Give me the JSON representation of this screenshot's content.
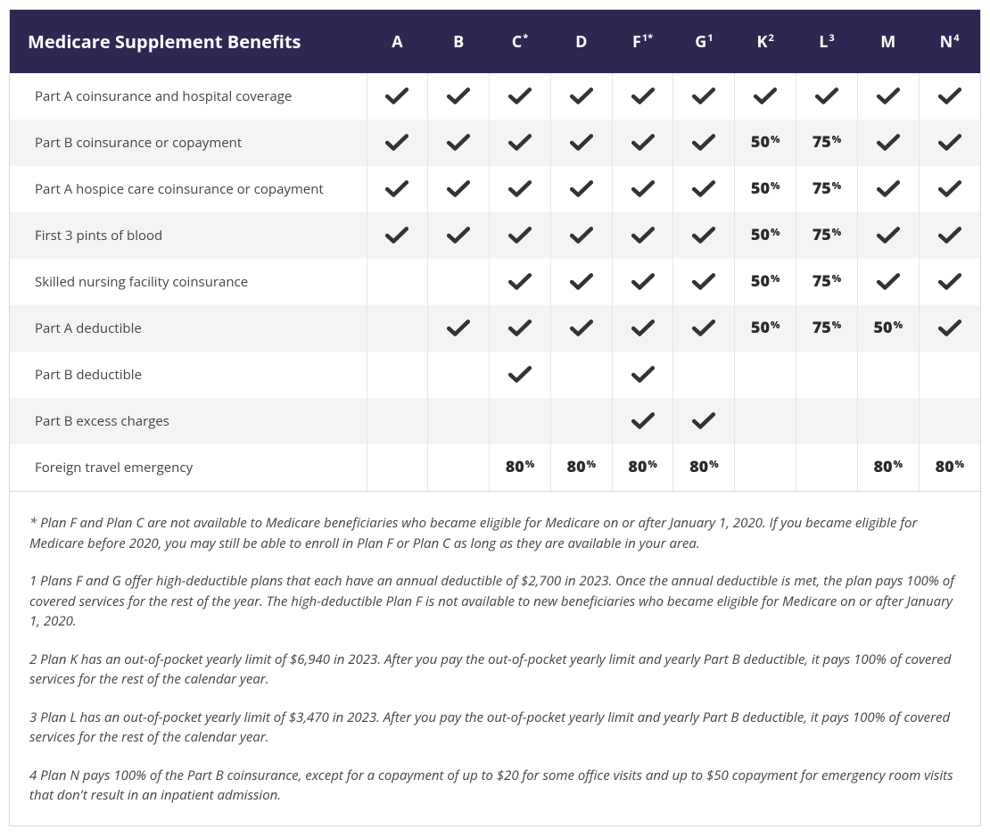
{
  "colors": {
    "header_bg": "#2f2752",
    "header_text": "#ffffff",
    "row_even_bg": "#f4f4f4",
    "row_odd_bg": "#ffffff",
    "border": "#e6e6e6",
    "outer_border": "#d8d8d8",
    "check_color": "#333333",
    "text": "#333333",
    "footnote_text": "#444444"
  },
  "table": {
    "title": "Medicare Supplement Benefits",
    "columns": [
      {
        "label": "A",
        "sup": ""
      },
      {
        "label": "B",
        "sup": ""
      },
      {
        "label": "C",
        "sup": "*"
      },
      {
        "label": "D",
        "sup": ""
      },
      {
        "label": "F",
        "sup": "1*"
      },
      {
        "label": "G",
        "sup": "1"
      },
      {
        "label": "K",
        "sup": "2"
      },
      {
        "label": "L",
        "sup": "3"
      },
      {
        "label": "M",
        "sup": ""
      },
      {
        "label": "N",
        "sup": "4"
      }
    ],
    "rows": [
      {
        "label": "Part A coinsurance and hospital coverage",
        "cells": [
          "check",
          "check",
          "check",
          "check",
          "check",
          "check",
          "check",
          "check",
          "check",
          "check"
        ]
      },
      {
        "label": "Part B coinsurance or copayment",
        "cells": [
          "check",
          "check",
          "check",
          "check",
          "check",
          "check",
          "50",
          "75",
          "check",
          "check"
        ]
      },
      {
        "label": "Part A hospice care coinsurance or copayment",
        "cells": [
          "check",
          "check",
          "check",
          "check",
          "check",
          "check",
          "50",
          "75",
          "check",
          "check"
        ]
      },
      {
        "label": "First 3 pints of blood",
        "cells": [
          "check",
          "check",
          "check",
          "check",
          "check",
          "check",
          "50",
          "75",
          "check",
          "check"
        ]
      },
      {
        "label": "Skilled nursing facility coinsurance",
        "cells": [
          "",
          "",
          "check",
          "check",
          "check",
          "check",
          "50",
          "75",
          "check",
          "check"
        ]
      },
      {
        "label": "Part A deductible",
        "cells": [
          "",
          "check",
          "check",
          "check",
          "check",
          "check",
          "50",
          "75",
          "50",
          "check"
        ]
      },
      {
        "label": "Part B deductible",
        "cells": [
          "",
          "",
          "check",
          "",
          "check",
          "",
          "",
          "",
          "",
          ""
        ]
      },
      {
        "label": "Part B excess charges",
        "cells": [
          "",
          "",
          "",
          "",
          "check",
          "check",
          "",
          "",
          "",
          ""
        ]
      },
      {
        "label": "Foreign travel emergency",
        "cells": [
          "",
          "",
          "80",
          "80",
          "80",
          "80",
          "",
          "",
          "80",
          "80"
        ]
      }
    ]
  },
  "footnotes": [
    "* Plan F and Plan C are not available to Medicare beneficiaries who became eligible for Medicare on or after January 1, 2020. If you became eligible for Medicare before 2020, you may still be able to enroll in Plan F or Plan C as long as they are available in your area.",
    "1 Plans F and G offer high-deductible plans that each have an annual deductible of $2,700 in 2023. Once the annual deductible is met, the plan pays 100% of covered services for the rest of the year. The high-deductible Plan F is not available to new beneficiaries who became eligible for Medicare on or after January 1, 2020.",
    "2 Plan K has an out-of-pocket yearly limit of $6,940 in 2023. After you pay the out-of-pocket yearly limit and yearly Part B deductible, it pays 100% of covered services for the rest of the calendar year.",
    "3 Plan L has an out-of-pocket yearly limit of $3,470 in 2023. After you pay the out-of-pocket yearly limit and yearly Part B deductible, it pays 100% of covered services for the rest of the calendar year.",
    "4 Plan N pays 100% of the Part B coinsurance, except for a copayment of up to $20 for some office visits and up to $50 copayment for emergency room visits that don't result in an inpatient admission."
  ]
}
